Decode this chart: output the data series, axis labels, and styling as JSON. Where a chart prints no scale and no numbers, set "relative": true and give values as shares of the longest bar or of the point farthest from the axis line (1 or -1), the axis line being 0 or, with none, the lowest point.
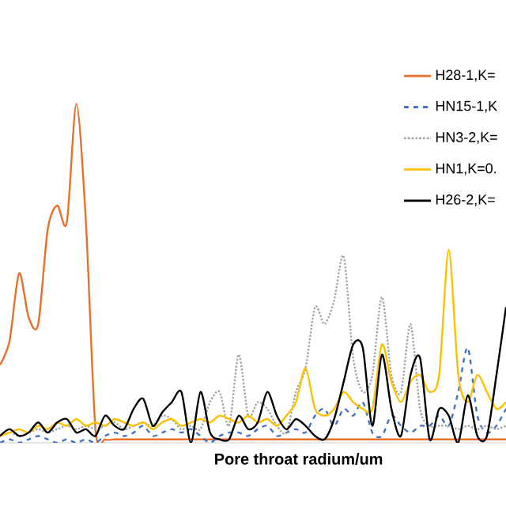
{
  "chart_data": {
    "type": "line",
    "relative": true,
    "xlabel": "Pore throat radium/um",
    "legend": "top right",
    "categories": [
      null,
      null,
      null,
      null,
      null,
      null,
      null,
      null,
      null,
      null,
      null,
      null,
      null,
      null,
      null,
      null,
      null,
      null,
      null,
      null,
      null,
      null,
      null,
      null,
      null,
      null,
      null,
      null,
      null,
      null,
      null,
      null,
      null,
      null,
      null,
      null,
      null,
      null,
      null,
      null,
      null,
      null,
      null,
      null,
      null,
      null,
      null,
      null,
      null,
      null,
      null,
      null,
      null,
      null
    ],
    "series": [
      {
        "name": "H28-1,K=",
        "color": "#e8702a",
        "line_style": "solid",
        "values": [
          0.23,
          0.3,
          0.5,
          0.37,
          0.35,
          0.63,
          0.7,
          0.65,
          1.0,
          0.65,
          0.04,
          0.01,
          0.01,
          0.01,
          0.01,
          0.01,
          0.01,
          0.01,
          0.01,
          0.01,
          0.01,
          0.01,
          0.01,
          0.01,
          0.01,
          0.01,
          0.01,
          0.01,
          0.01,
          0.01,
          0.01,
          0.01,
          0.01,
          0.01,
          0.01,
          0.01,
          0.01,
          0.01,
          0.01,
          0.01,
          0.01,
          0.01,
          0.01,
          0.01,
          0.01,
          0.01,
          0.01,
          0.01,
          0.01,
          0.01,
          0.01,
          0.01,
          0.01,
          0.01
        ]
      },
      {
        "name": "HN15-1,K",
        "color": "#4472c4",
        "line_style": "dashed",
        "values": [
          0.0,
          0.01,
          0.0,
          0.01,
          0.02,
          0.01,
          0.0,
          0.01,
          0.0,
          0.01,
          0.0,
          0.02,
          0.03,
          0.02,
          0.03,
          0.05,
          0.02,
          0.03,
          0.04,
          0.03,
          0.04,
          0.02,
          0.0,
          0.02,
          0.03,
          0.03,
          0.02,
          0.04,
          0.05,
          0.02,
          0.03,
          0.04,
          0.03,
          0.08,
          0.1,
          0.05,
          0.1,
          0.08,
          0.12,
          0.03,
          0.02,
          0.08,
          0.05,
          0.03,
          0.05,
          0.05,
          0.08,
          0.05,
          0.15,
          0.28,
          0.08,
          0.03,
          0.05,
          0.1
        ]
      },
      {
        "name": "HN3-2,K=",
        "color": "#a5a5a5",
        "line_style": "dotted",
        "values": [
          0.02,
          0.03,
          0.02,
          0.03,
          0.04,
          0.03,
          0.04,
          0.05,
          0.04,
          0.05,
          0.04,
          0.05,
          0.06,
          0.04,
          0.05,
          0.06,
          0.05,
          0.08,
          0.07,
          0.04,
          0.05,
          0.04,
          0.12,
          0.15,
          0.05,
          0.26,
          0.08,
          0.12,
          0.1,
          0.05,
          0.03,
          0.15,
          0.22,
          0.4,
          0.35,
          0.42,
          0.55,
          0.25,
          0.15,
          0.2,
          0.43,
          0.2,
          0.15,
          0.35,
          0.1,
          0.05,
          0.05,
          0.05,
          0.04,
          0.05,
          0.04,
          0.05,
          0.04,
          0.05
        ]
      },
      {
        "name": "HN1,K=0.",
        "color": "#ffc000",
        "line_style": "solid",
        "values": [
          0.02,
          0.03,
          0.04,
          0.03,
          0.05,
          0.04,
          0.06,
          0.05,
          0.07,
          0.05,
          0.06,
          0.05,
          0.07,
          0.06,
          0.05,
          0.06,
          0.04,
          0.06,
          0.07,
          0.05,
          0.06,
          0.07,
          0.06,
          0.08,
          0.07,
          0.06,
          0.08,
          0.06,
          0.07,
          0.05,
          0.08,
          0.12,
          0.22,
          0.1,
          0.08,
          0.1,
          0.15,
          0.12,
          0.1,
          0.1,
          0.29,
          0.18,
          0.12,
          0.18,
          0.2,
          0.15,
          0.2,
          0.57,
          0.2,
          0.12,
          0.2,
          0.15,
          0.1,
          0.12
        ]
      },
      {
        "name": "H26-2,K=",
        "color": "#000000",
        "line_style": "solid",
        "values": [
          0.02,
          0.04,
          0.02,
          0.03,
          0.06,
          0.03,
          0.06,
          0.07,
          0.03,
          0.04,
          0.02,
          0.08,
          0.05,
          0.04,
          0.1,
          0.13,
          0.05,
          0.09,
          0.12,
          0.15,
          0.0,
          0.15,
          0.03,
          0.01,
          0.01,
          0.08,
          0.04,
          0.06,
          0.15,
          0.08,
          0.04,
          0.07,
          0.05,
          0.02,
          0.01,
          0.07,
          0.18,
          0.29,
          0.28,
          0.05,
          0.26,
          0.1,
          0.02,
          0.2,
          0.25,
          0.01,
          0.1,
          0.08,
          0.0,
          0.14,
          0.02,
          0.02,
          0.2,
          0.4
        ]
      }
    ]
  }
}
